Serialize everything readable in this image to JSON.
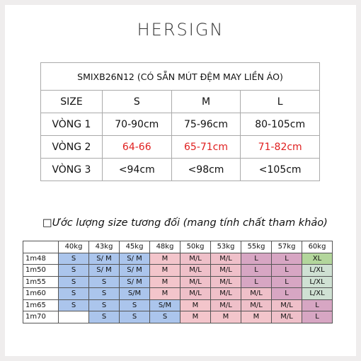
{
  "brand": "HERSIGN",
  "size_table": {
    "title": "SMIXB26N12 (CÓ SẴN MÚT ĐỆM MAY LIỀN ÁO)",
    "header": [
      "SIZE",
      "S",
      "M",
      "L"
    ],
    "rows": [
      [
        "VÒNG 1",
        "70-90cm",
        "75-96cm",
        "80-105cm"
      ],
      [
        "VÒNG 2",
        "64-66",
        "65-71cm",
        "71-82cm"
      ],
      [
        "VÒNG 3",
        "<94cm",
        "<98cm",
        "<105cm"
      ]
    ]
  },
  "note": "□Ước lượng size tương đối (mang tính chất tham khảo)",
  "fit_table": {
    "weights": [
      "40kg",
      "43kg",
      "45kg",
      "48kg",
      "50kg",
      "53kg",
      "55kg",
      "57kg",
      "60kg"
    ],
    "rows": [
      {
        "height": "1m48",
        "sizes": [
          "S",
          "S/ M",
          "S/ M",
          "M",
          "M/L",
          "M/L",
          "L",
          "L",
          "XL"
        ]
      },
      {
        "height": "1m50",
        "sizes": [
          "S",
          "S/ M",
          "S/ M",
          "M",
          "M/L",
          "M/L",
          "L",
          "L",
          "L/XL"
        ]
      },
      {
        "height": "1m55",
        "sizes": [
          "S",
          "S",
          "S/ M",
          "M",
          "M/L",
          "M/L",
          "L",
          "L",
          "L/XL"
        ]
      },
      {
        "height": "1m60",
        "sizes": [
          "S",
          "S",
          "S/M",
          "M",
          "M/L",
          "M/L",
          "M/L",
          "L",
          "L/XL"
        ]
      },
      {
        "height": "1m65",
        "sizes": [
          "S",
          "S",
          "S",
          "S/M",
          "M",
          "M/L",
          "M/L",
          "M/L",
          "L"
        ]
      },
      {
        "height": "1m70",
        "sizes": [
          null,
          "S",
          "S",
          "S",
          "M",
          "M",
          "M",
          "M/L",
          "L"
        ]
      }
    ]
  }
}
